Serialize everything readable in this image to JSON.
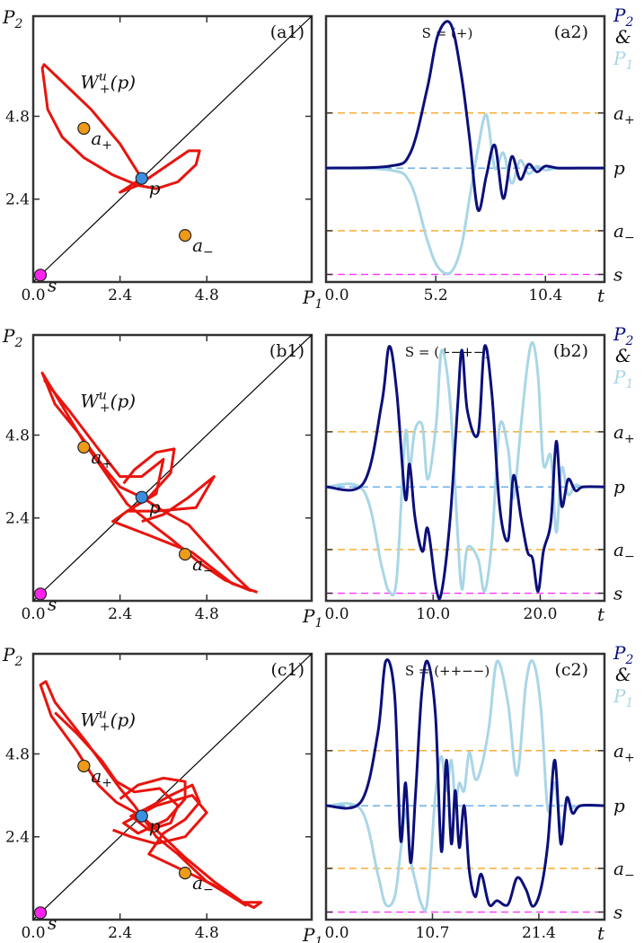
{
  "colors": {
    "orbit": "#e8140e",
    "diagonal": "#000000",
    "p2_series": "#0b0f7a",
    "p1_series": "#a9d6e6",
    "a_level": "#f5a623",
    "p_level": "#5fa8e8",
    "s_level": "#ff33ff",
    "point_p": "#3b8fe0",
    "point_a": "#f09a1a",
    "point_s": "#ff22ee"
  },
  "chart_data": [
    {
      "type": "line",
      "panel": "a1",
      "label": "(a1)",
      "xlabel": "P1",
      "ylabel": "P2",
      "xticks": [
        "0.0",
        "2.4",
        "4.8"
      ],
      "xtick_values": [
        0,
        2.4,
        4.8
      ],
      "yticks": [
        "2.4",
        "4.8"
      ],
      "ytick_values": [
        2.4,
        4.8
      ],
      "xlim": [
        0,
        7.7
      ],
      "ylim": [
        0,
        7.7
      ],
      "curve_label": "W+u(p)",
      "points": [
        {
          "name": "a+",
          "x": 1.4,
          "y": 4.45
        },
        {
          "name": "p",
          "x": 3.0,
          "y": 3.0
        },
        {
          "name": "a-",
          "x": 4.2,
          "y": 1.35
        },
        {
          "name": "s",
          "x": 0.2,
          "y": 0.2
        }
      ]
    },
    {
      "type": "line",
      "panel": "a2",
      "label": "(a2)",
      "sequence": "S = (+)",
      "xlabel": "t",
      "xticks": [
        "0.0",
        "5.2",
        "10.4"
      ],
      "xtick_values": [
        0,
        5.2,
        10.4
      ],
      "xlim": [
        0,
        13.2
      ],
      "levels": [
        {
          "name": "a+",
          "value": 4.45
        },
        {
          "name": "p",
          "value": 3.0
        },
        {
          "name": "a-",
          "value": 1.35
        },
        {
          "name": "s",
          "value": 0.2
        }
      ],
      "legend": [
        "P2",
        "&",
        "P1"
      ],
      "series": [
        {
          "name": "P2",
          "x": [
            0,
            3,
            4,
            4.8,
            5.3,
            5.9,
            6.4,
            6.8,
            7.2,
            7.6,
            8.0,
            8.4,
            8.8,
            9.2,
            9.6,
            10,
            10.4,
            11,
            12,
            13.2
          ],
          "y": [
            3.0,
            3.05,
            3.4,
            5.1,
            6.5,
            6.8,
            5.5,
            3.8,
            1.9,
            2.8,
            3.6,
            2.2,
            3.3,
            2.7,
            3.1,
            2.9,
            3.05,
            3.0,
            3.0,
            3.0
          ]
        },
        {
          "name": "P1",
          "x": [
            0,
            3,
            4,
            4.8,
            5.3,
            5.9,
            6.4,
            6.8,
            7.2,
            7.6,
            8.0,
            8.4,
            8.8,
            9.2,
            9.6,
            10,
            10.4,
            11,
            12,
            13.2
          ],
          "y": [
            3.0,
            2.95,
            2.6,
            1.1,
            0.4,
            0.25,
            0.9,
            2.2,
            3.5,
            4.4,
            3.0,
            3.4,
            2.6,
            3.2,
            2.85,
            3.05,
            2.95,
            3.0,
            3.0,
            3.0
          ]
        }
      ]
    },
    {
      "type": "line",
      "panel": "b1",
      "label": "(b1)",
      "xlabel": "P1",
      "ylabel": "P2",
      "xticks": [
        "0.0",
        "2.4",
        "4.8"
      ],
      "xtick_values": [
        0,
        2.4,
        4.8
      ],
      "yticks": [
        "2.4",
        "4.8"
      ],
      "ytick_values": [
        2.4,
        4.8
      ],
      "xlim": [
        0,
        7.7
      ],
      "ylim": [
        0,
        7.7
      ],
      "curve_label": "W+u(p)",
      "points": [
        {
          "name": "a+",
          "x": 1.4,
          "y": 4.45
        },
        {
          "name": "p",
          "x": 3.0,
          "y": 3.0
        },
        {
          "name": "a-",
          "x": 4.2,
          "y": 1.35
        },
        {
          "name": "s",
          "x": 0.2,
          "y": 0.2
        }
      ]
    },
    {
      "type": "line",
      "panel": "b2",
      "label": "(b2)",
      "sequence": "S = (+−+−)",
      "xlabel": "t",
      "xticks": [
        "0.0",
        "10.0",
        "20.0"
      ],
      "xtick_values": [
        0,
        10,
        20
      ],
      "xlim": [
        0,
        26
      ],
      "levels": [
        {
          "name": "a+",
          "value": 4.45
        },
        {
          "name": "p",
          "value": 3.0
        },
        {
          "name": "a-",
          "value": 1.35
        },
        {
          "name": "s",
          "value": 0.2
        }
      ],
      "legend": [
        "P2",
        "&",
        "P1"
      ],
      "series": [
        {
          "name": "P2",
          "x": [
            0,
            3.5,
            5.2,
            5.9,
            6.6,
            7.4,
            7.8,
            8.3,
            9.0,
            9.5,
            10.3,
            10.8,
            11.6,
            12.3,
            12.7,
            13.2,
            14.2,
            14.8,
            15.5,
            16.2,
            17.0,
            17.5,
            18.2,
            18.8,
            19.3,
            19.8,
            20.3,
            21.0,
            21.5,
            22.0,
            22.6,
            23.3,
            24,
            26
          ],
          "y": [
            3.0,
            3.1,
            5.2,
            6.7,
            5.5,
            2.7,
            3.6,
            2.2,
            1.3,
            1.9,
            0.3,
            0.25,
            2.2,
            5.2,
            6.6,
            5.0,
            4.4,
            6.7,
            5.4,
            2.5,
            1.6,
            3.3,
            2.2,
            1.3,
            1.1,
            0.25,
            1.3,
            2.1,
            4.2,
            2.5,
            3.2,
            2.9,
            3.0,
            3.0
          ]
        },
        {
          "name": "P1",
          "x": [
            0,
            3.5,
            5.2,
            5.9,
            6.6,
            7.4,
            7.8,
            8.3,
            9.0,
            9.5,
            10.3,
            10.8,
            11.6,
            12.3,
            12.7,
            13.2,
            14.2,
            14.8,
            15.5,
            16.2,
            17.0,
            17.5,
            18.2,
            18.8,
            19.3,
            19.8,
            20.3,
            21.0,
            21.5,
            22.0,
            22.6,
            23.3,
            24,
            26
          ],
          "y": [
            3.0,
            2.9,
            0.9,
            0.25,
            0.6,
            4.4,
            3.5,
            4.5,
            4.6,
            3.2,
            4.7,
            6.6,
            5.2,
            1.7,
            0.3,
            1.4,
            1.1,
            0.25,
            1.6,
            4.6,
            4.0,
            2.7,
            4.6,
            6.2,
            6.8,
            5.9,
            3.6,
            3.8,
            1.8,
            3.5,
            2.8,
            3.05,
            3.0,
            3.0
          ]
        }
      ]
    },
    {
      "type": "line",
      "panel": "c1",
      "label": "(c1)",
      "xlabel": "P1",
      "ylabel": "P2",
      "xticks": [
        "0.0",
        "2.4",
        "4.8"
      ],
      "xtick_values": [
        0,
        2.4,
        4.8
      ],
      "yticks": [
        "2.4",
        "4.8"
      ],
      "ytick_values": [
        2.4,
        4.8
      ],
      "xlim": [
        0,
        7.7
      ],
      "ylim": [
        0,
        7.7
      ],
      "curve_label": "W+u(p)",
      "points": [
        {
          "name": "a+",
          "x": 1.4,
          "y": 4.45
        },
        {
          "name": "p",
          "x": 3.0,
          "y": 3.0
        },
        {
          "name": "a-",
          "x": 4.2,
          "y": 1.35
        },
        {
          "name": "s",
          "x": 0.2,
          "y": 0.2
        }
      ]
    },
    {
      "type": "line",
      "panel": "c2",
      "label": "(c2)",
      "sequence": "S = (++−−)",
      "xlabel": "t",
      "xticks": [
        "0.0",
        "10.7",
        "21.4"
      ],
      "xtick_values": [
        0,
        10.7,
        21.4
      ],
      "xlim": [
        0,
        28
      ],
      "levels": [
        {
          "name": "a+",
          "value": 4.45
        },
        {
          "name": "p",
          "value": 3.0
        },
        {
          "name": "a-",
          "value": 1.35
        },
        {
          "name": "s",
          "value": 0.2
        }
      ],
      "legend": [
        "P2",
        "&",
        "P1"
      ],
      "series": [
        {
          "name": "P2",
          "x": [
            0,
            3.5,
            5.2,
            6.0,
            6.9,
            7.5,
            8.0,
            8.5,
            9.0,
            9.6,
            10.2,
            11.0,
            11.6,
            12.1,
            12.6,
            13.0,
            13.4,
            13.9,
            14.4,
            15.0,
            15.6,
            16.4,
            17.2,
            18.3,
            19.2,
            20.1,
            20.8,
            21.6,
            22.3,
            23.0,
            23.6,
            24.2,
            24.8,
            25.6,
            28
          ],
          "y": [
            3.0,
            3.1,
            4.9,
            6.8,
            5.9,
            2.1,
            3.6,
            1.5,
            3.3,
            5.9,
            6.8,
            5.4,
            1.8,
            4.2,
            2.0,
            3.4,
            1.9,
            3.0,
            1.3,
            0.6,
            1.2,
            0.4,
            0.5,
            0.4,
            1.1,
            0.8,
            0.35,
            0.8,
            2.0,
            4.2,
            2.0,
            3.2,
            2.8,
            3.0,
            3.0
          ]
        },
        {
          "name": "P1",
          "x": [
            0,
            3.5,
            5.2,
            6.0,
            6.9,
            7.5,
            8.0,
            8.5,
            9.0,
            9.6,
            10.2,
            11.0,
            11.6,
            12.1,
            12.6,
            13.0,
            13.4,
            13.9,
            14.4,
            15.0,
            15.6,
            16.4,
            17.2,
            18.3,
            19.2,
            20.1,
            20.8,
            21.6,
            22.3,
            23.0,
            23.6,
            24.2,
            24.8,
            25.6,
            28
          ],
          "y": [
            3.0,
            2.9,
            1.2,
            0.4,
            0.6,
            1.8,
            2.9,
            1.6,
            1.0,
            0.4,
            0.5,
            3.3,
            4.3,
            3.4,
            4.2,
            3.1,
            3.6,
            3.4,
            4.4,
            3.7,
            4.0,
            5.1,
            6.8,
            5.7,
            3.8,
            6.2,
            6.8,
            5.6,
            2.9,
            3.6,
            2.4,
            3.1,
            2.95,
            3.0,
            3.0
          ]
        }
      ]
    }
  ]
}
